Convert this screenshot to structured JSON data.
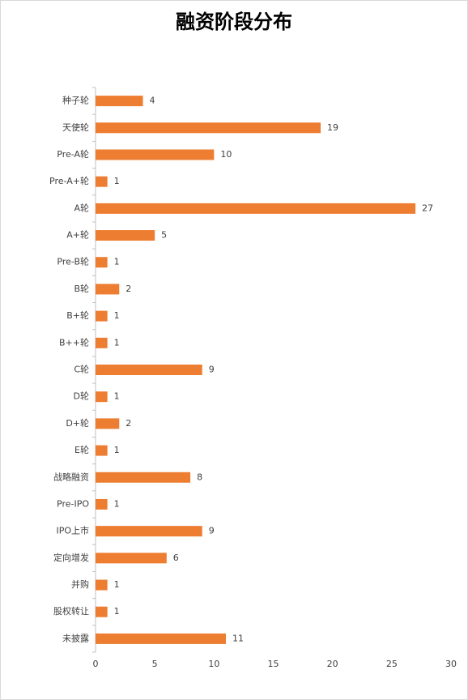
{
  "chart_data": {
    "type": "bar",
    "orientation": "horizontal",
    "title": "融资阶段分布",
    "categories": [
      "种子轮",
      "天使轮",
      "Pre-A轮",
      "Pre-A+轮",
      "A轮",
      "A+轮",
      "Pre-B轮",
      "B轮",
      "B+轮",
      "B++轮",
      "C轮",
      "D轮",
      "D+轮",
      "E轮",
      "战略融资",
      "Pre-IPO",
      "IPO上市",
      "定向增发",
      "并购",
      "股权转让",
      "未披露"
    ],
    "values": [
      4,
      19,
      10,
      1,
      27,
      5,
      1,
      2,
      1,
      1,
      9,
      1,
      2,
      1,
      8,
      1,
      9,
      6,
      1,
      1,
      11
    ],
    "color": "#ed7d31",
    "xlim": [
      0,
      30
    ],
    "xticks": [
      0,
      5,
      10,
      15,
      20,
      25,
      30
    ],
    "grid": false
  }
}
